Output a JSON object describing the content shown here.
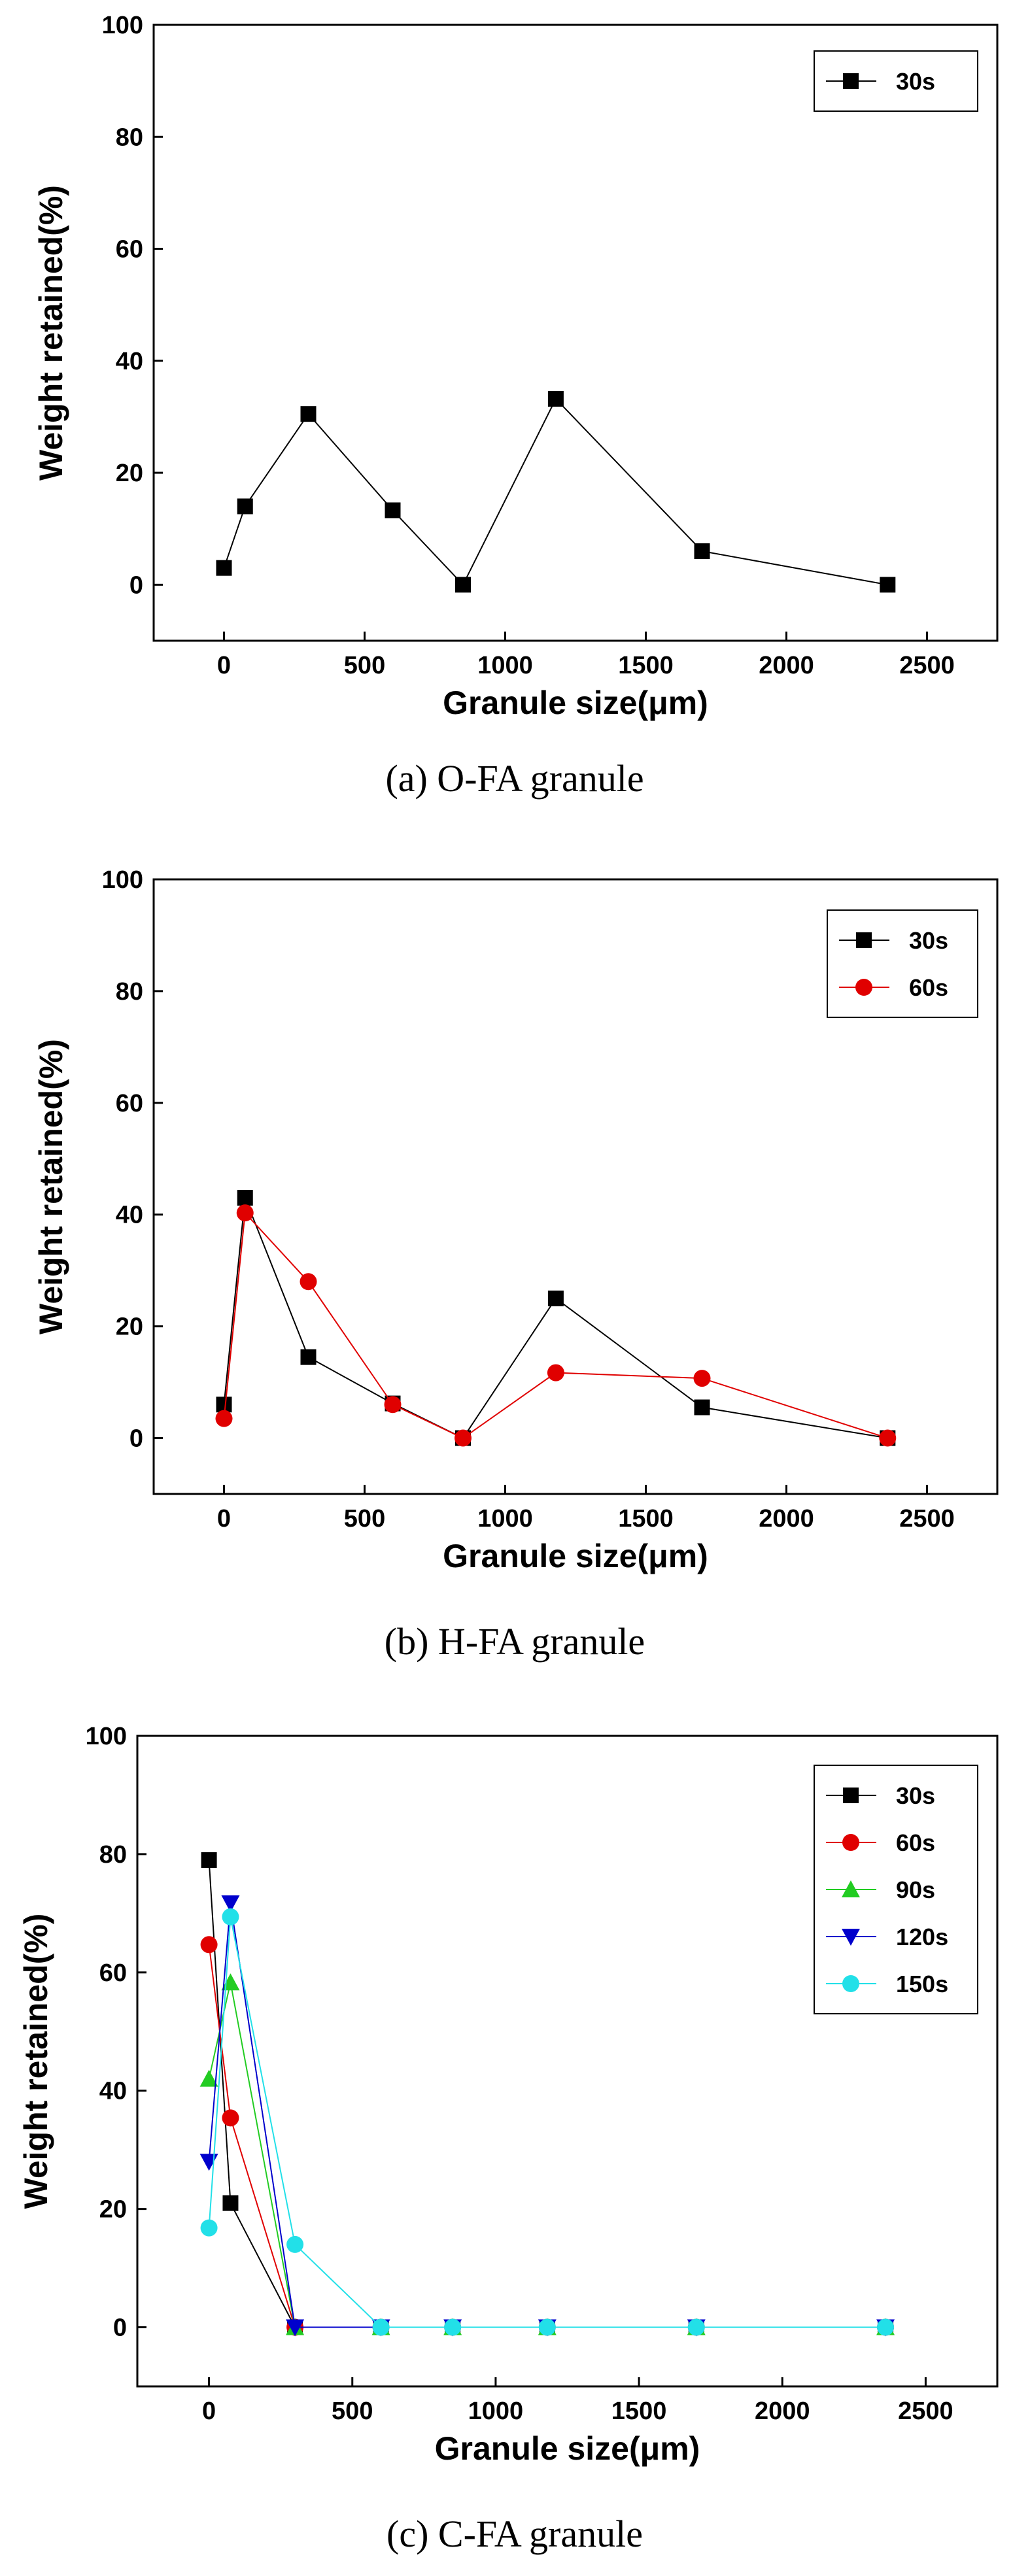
{
  "colors": {
    "30s": "#000000",
    "60s": "#e00000",
    "90s": "#22cc22",
    "120s": "#0000cc",
    "150s": "#22e0e8"
  },
  "chart_data": [
    {
      "type": "line",
      "caption": "(a) O-FA granule",
      "xlabel": "Granule size(μm)",
      "ylabel": "Weight retained(%)",
      "xlim": [
        -250,
        2750
      ],
      "ylim": [
        -10,
        100
      ],
      "xticks": [
        0,
        500,
        1000,
        1500,
        2000,
        2500
      ],
      "yticks": [
        0,
        20,
        40,
        60,
        80,
        100
      ],
      "legend_position": "top-right",
      "series": [
        {
          "name": "30s",
          "marker": "square",
          "color": "#000000",
          "x": [
            0,
            75,
            300,
            600,
            850,
            1180,
            1700,
            2360
          ],
          "y": [
            3,
            14,
            30.5,
            13.3,
            0,
            33.2,
            6,
            0
          ]
        }
      ]
    },
    {
      "type": "line",
      "caption": "(b) H-FA granule",
      "xlabel": "Granule size(μm)",
      "ylabel": "Weight retained(%)",
      "xlim": [
        -250,
        2750
      ],
      "ylim": [
        -10,
        100
      ],
      "xticks": [
        0,
        500,
        1000,
        1500,
        2000,
        2500
      ],
      "yticks": [
        0,
        20,
        40,
        60,
        80,
        100
      ],
      "legend_position": "top-right",
      "series": [
        {
          "name": "30s",
          "marker": "square",
          "color": "#000000",
          "x": [
            0,
            75,
            300,
            600,
            850,
            1180,
            1700,
            2360
          ],
          "y": [
            6,
            43,
            14.5,
            6.2,
            0,
            25,
            5.5,
            0
          ]
        },
        {
          "name": "60s",
          "marker": "circle",
          "color": "#e00000",
          "x": [
            0,
            75,
            300,
            600,
            850,
            1180,
            1700,
            2360
          ],
          "y": [
            3.5,
            40.3,
            28,
            6,
            0,
            11.7,
            10.7,
            0
          ]
        }
      ]
    },
    {
      "type": "line",
      "caption": "(c) C-FA granule",
      "xlabel": "Granule size(μm)",
      "ylabel": "Weight retained(%)",
      "xlim": [
        -250,
        2750
      ],
      "ylim": [
        -10,
        100
      ],
      "xticks": [
        0,
        500,
        1000,
        1500,
        2000,
        2500
      ],
      "yticks": [
        0,
        20,
        40,
        60,
        80,
        100
      ],
      "legend_position": "top-right",
      "series": [
        {
          "name": "30s",
          "marker": "square",
          "color": "#000000",
          "x": [
            0,
            75,
            300,
            600,
            850,
            1180,
            1700,
            2360
          ],
          "y": [
            79,
            21,
            0,
            0,
            0,
            0,
            0,
            0
          ]
        },
        {
          "name": "60s",
          "marker": "circle",
          "color": "#e00000",
          "x": [
            0,
            75,
            300,
            600,
            850,
            1180,
            1700,
            2360
          ],
          "y": [
            64.7,
            35.4,
            0,
            0,
            0,
            0,
            0,
            0
          ]
        },
        {
          "name": "90s",
          "marker": "triangle-up",
          "color": "#22cc22",
          "x": [
            0,
            75,
            300,
            600,
            850,
            1180,
            1700,
            2360
          ],
          "y": [
            42,
            58.3,
            0,
            0,
            0,
            0,
            0,
            0
          ]
        },
        {
          "name": "120s",
          "marker": "triangle-down",
          "color": "#0000cc",
          "x": [
            0,
            75,
            300,
            600,
            850,
            1180,
            1700,
            2360
          ],
          "y": [
            28,
            71.7,
            0,
            0,
            0,
            0,
            0,
            0
          ]
        },
        {
          "name": "150s",
          "marker": "circle",
          "color": "#22e0e8",
          "x": [
            0,
            75,
            300,
            600,
            850,
            1180,
            1700,
            2360
          ],
          "y": [
            16.8,
            69.4,
            14,
            0,
            0,
            0,
            0,
            0
          ]
        }
      ]
    }
  ]
}
